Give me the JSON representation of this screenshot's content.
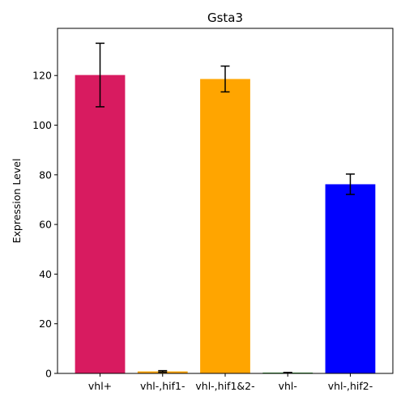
{
  "chart_data": {
    "type": "bar",
    "title": "Gsta3",
    "xlabel": "",
    "ylabel": "Expression Level",
    "categories": [
      "vhl+",
      "vhl-,hif1-",
      "vhl-,hif1&2-",
      "vhl-",
      "vhl-,hif2-"
    ],
    "values": [
      120.2,
      0.8,
      118.6,
      0.3,
      76.2
    ],
    "errors": [
      12.8,
      0.3,
      5.2,
      0.1,
      4.1
    ],
    "colors": [
      "#d81b60",
      "#ffa500",
      "#ffa500",
      "#008000",
      "#0000ff"
    ],
    "ylim": [
      0,
      139
    ],
    "yticks": [
      0,
      20,
      40,
      60,
      80,
      100,
      120
    ],
    "grid": false,
    "legend": "none"
  }
}
